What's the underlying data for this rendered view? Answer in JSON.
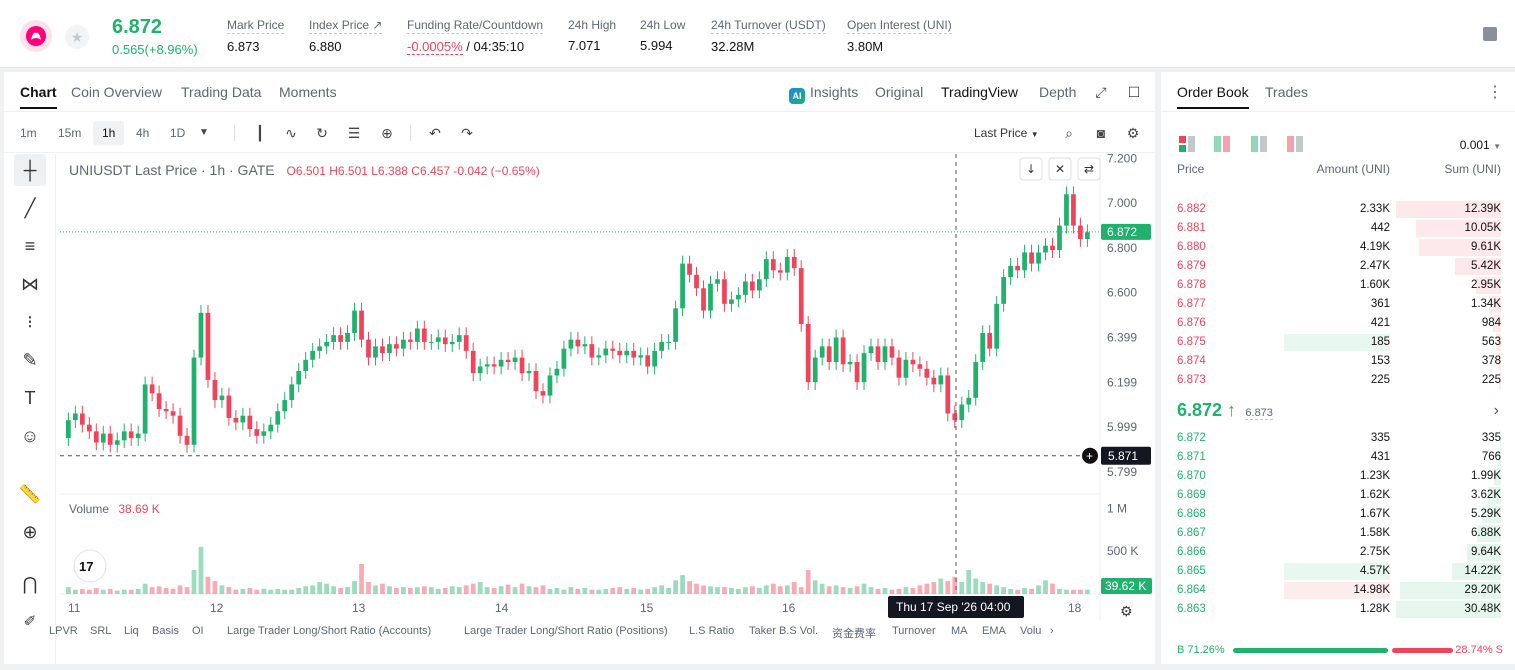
{
  "header": {
    "price": "6.872",
    "change": "0.565(+8.96%)",
    "stats": [
      {
        "label": "Mark Price",
        "value": "6.873"
      },
      {
        "label": "Index Price ↗",
        "value": "6.880"
      },
      {
        "label": "Funding Rate/Countdown",
        "value_neg": "-0.0005%",
        "value": " / 04:35:10"
      },
      {
        "label": "24h High",
        "value": "7.071"
      },
      {
        "label": "24h Low",
        "value": "5.994"
      },
      {
        "label": "24h Turnover (USDT)",
        "value": "32.28M"
      },
      {
        "label": "Open Interest (UNI)",
        "value": "3.80M"
      }
    ]
  },
  "chart_tabs": [
    "Chart",
    "Coin Overview",
    "Trading Data",
    "Moments"
  ],
  "views": [
    "Insights",
    "Original",
    "TradingView",
    "Depth"
  ],
  "ai_badge": "AI",
  "timeframes": [
    "1m",
    "15m",
    "1h",
    "4h",
    "1D"
  ],
  "price_type": "Last Price",
  "legend": {
    "symbol": "UNIUSDT Last Price · 1h · GATE",
    "ohlc": "O6.501  H6.501  L6.388  C6.457  -0.042 (−0.65%)"
  },
  "volume_legend": {
    "label": "Volume",
    "value": "38.69 K"
  },
  "crosshair": {
    "price": "5.871",
    "time": "Thu 17 Sep '26   04:00"
  },
  "last_price_tag": "6.872",
  "volume_tag": "39.62 K",
  "indicators": [
    "LPVR",
    "SRL",
    "Liq",
    "Basis",
    "OI",
    "Large Trader Long/Short Ratio (Accounts)",
    "Large Trader Long/Short Ratio (Positions)",
    "L.S Ratio",
    "Taker B.S Vol.",
    "资金费率",
    "Turnover",
    "MA",
    "EMA",
    "Volu"
  ],
  "chart_data": {
    "type": "candlestick",
    "y_ticks": [
      "7.200",
      "7.000",
      "6.800",
      "6.600",
      "6.399",
      "6.199",
      "5.999",
      "5.799"
    ],
    "vol_ticks": [
      "1 M",
      "500 K"
    ],
    "x_ticks": [
      "11",
      "12",
      "13",
      "14",
      "15",
      "16",
      "18"
    ],
    "ylim": [
      5.7,
      7.22
    ],
    "candles": [
      [
        5.95,
        6.03
      ],
      [
        6.03,
        6.06
      ],
      [
        6.06,
        6.01
      ],
      [
        6.01,
        5.98
      ],
      [
        5.98,
        5.93
      ],
      [
        5.93,
        5.97
      ],
      [
        5.97,
        5.92
      ],
      [
        5.92,
        5.94
      ],
      [
        5.94,
        5.98
      ],
      [
        5.98,
        5.95
      ],
      [
        5.95,
        5.97
      ],
      [
        5.97,
        6.19
      ],
      [
        6.19,
        6.15
      ],
      [
        6.15,
        6.08
      ],
      [
        6.08,
        6.07
      ],
      [
        6.07,
        6.05
      ],
      [
        6.05,
        5.96
      ],
      [
        5.96,
        5.92
      ],
      [
        5.92,
        6.31
      ],
      [
        6.31,
        6.51
      ],
      [
        6.51,
        6.21
      ],
      [
        6.21,
        6.12
      ],
      [
        6.12,
        6.14
      ],
      [
        6.14,
        6.04
      ],
      [
        6.04,
        6.02
      ],
      [
        6.02,
        6.05
      ],
      [
        6.05,
        5.99
      ],
      [
        5.99,
        5.96
      ],
      [
        5.96,
        5.98
      ],
      [
        5.98,
        6.01
      ],
      [
        6.01,
        6.07
      ],
      [
        6.07,
        6.12
      ],
      [
        6.12,
        6.19
      ],
      [
        6.19,
        6.25
      ],
      [
        6.25,
        6.3
      ],
      [
        6.3,
        6.34
      ],
      [
        6.34,
        6.36
      ],
      [
        6.36,
        6.38
      ],
      [
        6.38,
        6.41
      ],
      [
        6.41,
        6.38
      ],
      [
        6.38,
        6.42
      ],
      [
        6.42,
        6.52
      ],
      [
        6.52,
        6.39
      ],
      [
        6.39,
        6.31
      ],
      [
        6.31,
        6.36
      ],
      [
        6.36,
        6.33
      ],
      [
        6.33,
        6.37
      ],
      [
        6.37,
        6.35
      ],
      [
        6.35,
        6.39
      ],
      [
        6.39,
        6.38
      ],
      [
        6.38,
        6.44
      ],
      [
        6.44,
        6.38
      ],
      [
        6.38,
        6.38
      ],
      [
        6.38,
        6.4
      ],
      [
        6.4,
        6.37
      ],
      [
        6.37,
        6.38
      ],
      [
        6.38,
        6.41
      ],
      [
        6.41,
        6.34
      ],
      [
        6.34,
        6.24
      ],
      [
        6.24,
        6.27
      ],
      [
        6.27,
        6.28
      ],
      [
        6.28,
        6.27
      ],
      [
        6.27,
        6.3
      ],
      [
        6.3,
        6.29
      ],
      [
        6.29,
        6.31
      ],
      [
        6.31,
        6.24
      ],
      [
        6.24,
        6.25
      ],
      [
        6.25,
        6.16
      ],
      [
        6.16,
        6.14
      ],
      [
        6.14,
        6.23
      ],
      [
        6.23,
        6.26
      ],
      [
        6.26,
        6.35
      ],
      [
        6.35,
        6.39
      ],
      [
        6.39,
        6.36
      ],
      [
        6.36,
        6.37
      ],
      [
        6.37,
        6.31
      ],
      [
        6.31,
        6.32
      ],
      [
        6.32,
        6.35
      ],
      [
        6.35,
        6.34
      ],
      [
        6.34,
        6.32
      ],
      [
        6.32,
        6.34
      ],
      [
        6.34,
        6.31
      ],
      [
        6.31,
        6.32
      ],
      [
        6.32,
        6.27
      ],
      [
        6.27,
        6.34
      ],
      [
        6.34,
        6.38
      ],
      [
        6.38,
        6.38
      ],
      [
        6.38,
        6.53
      ],
      [
        6.53,
        6.73
      ],
      [
        6.73,
        6.68
      ],
      [
        6.68,
        6.62
      ],
      [
        6.62,
        6.52
      ],
      [
        6.52,
        6.64
      ],
      [
        6.64,
        6.66
      ],
      [
        6.66,
        6.55
      ],
      [
        6.55,
        6.57
      ],
      [
        6.57,
        6.59
      ],
      [
        6.59,
        6.65
      ],
      [
        6.65,
        6.61
      ],
      [
        6.61,
        6.66
      ],
      [
        6.66,
        6.75
      ],
      [
        6.75,
        6.7
      ],
      [
        6.7,
        6.69
      ],
      [
        6.69,
        6.76
      ],
      [
        6.76,
        6.71
      ],
      [
        6.71,
        6.46
      ],
      [
        6.46,
        6.2
      ],
      [
        6.2,
        6.31
      ],
      [
        6.31,
        6.36
      ],
      [
        6.36,
        6.29
      ],
      [
        6.29,
        6.4
      ],
      [
        6.4,
        6.28
      ],
      [
        6.28,
        6.29
      ],
      [
        6.29,
        6.2
      ],
      [
        6.2,
        6.33
      ],
      [
        6.33,
        6.36
      ],
      [
        6.36,
        6.29
      ],
      [
        6.29,
        6.36
      ],
      [
        6.36,
        6.31
      ],
      [
        6.31,
        6.22
      ],
      [
        6.22,
        6.3
      ],
      [
        6.3,
        6.28
      ],
      [
        6.28,
        6.26
      ],
      [
        6.26,
        6.22
      ],
      [
        6.22,
        6.19
      ],
      [
        6.19,
        6.23
      ],
      [
        6.23,
        6.06
      ],
      [
        6.06,
        6.03
      ],
      [
        6.03,
        6.1
      ],
      [
        6.1,
        6.13
      ],
      [
        6.13,
        6.29
      ],
      [
        6.29,
        6.42
      ],
      [
        6.42,
        6.35
      ],
      [
        6.35,
        6.55
      ],
      [
        6.55,
        6.67
      ],
      [
        6.67,
        6.72
      ],
      [
        6.72,
        6.7
      ],
      [
        6.7,
        6.78
      ],
      [
        6.78,
        6.73
      ],
      [
        6.73,
        6.78
      ],
      [
        6.78,
        6.81
      ],
      [
        6.81,
        6.79
      ],
      [
        6.79,
        6.9
      ],
      [
        6.9,
        7.04
      ],
      [
        7.04,
        6.9
      ],
      [
        6.9,
        6.84
      ],
      [
        6.84,
        6.87
      ]
    ],
    "volumes": [
      0.08,
      0.05,
      0.06,
      0.05,
      0.07,
      0.05,
      0.06,
      0.04,
      0.05,
      0.05,
      0.06,
      0.12,
      0.08,
      0.09,
      0.07,
      0.06,
      0.1,
      0.08,
      0.28,
      0.55,
      0.2,
      0.15,
      0.1,
      0.08,
      0.05,
      0.06,
      0.07,
      0.05,
      0.06,
      0.05,
      0.06,
      0.05,
      0.05,
      0.07,
      0.09,
      0.1,
      0.14,
      0.12,
      0.09,
      0.07,
      0.08,
      0.15,
      0.35,
      0.14,
      0.1,
      0.12,
      0.09,
      0.07,
      0.08,
      0.07,
      0.08,
      0.09,
      0.08,
      0.06,
      0.07,
      0.09,
      0.08,
      0.1,
      0.12,
      0.14,
      0.08,
      0.07,
      0.09,
      0.11,
      0.08,
      0.12,
      0.09,
      0.08,
      0.1,
      0.06,
      0.07,
      0.05,
      0.08,
      0.06,
      0.07,
      0.05,
      0.05,
      0.06,
      0.07,
      0.08,
      0.06,
      0.07,
      0.05,
      0.06,
      0.08,
      0.1,
      0.07,
      0.16,
      0.22,
      0.15,
      0.12,
      0.1,
      0.09,
      0.08,
      0.08,
      0.07,
      0.06,
      0.08,
      0.09,
      0.07,
      0.1,
      0.12,
      0.09,
      0.1,
      0.14,
      0.08,
      0.28,
      0.16,
      0.12,
      0.09,
      0.1,
      0.08,
      0.07,
      0.09,
      0.12,
      0.08,
      0.06,
      0.07,
      0.05,
      0.06,
      0.08,
      0.07,
      0.1,
      0.12,
      0.14,
      0.18,
      0.15,
      0.2,
      0.14,
      0.28,
      0.18,
      0.14,
      0.12,
      0.1,
      0.08,
      0.06,
      0.05,
      0.07,
      0.06,
      0.1,
      0.16,
      0.12,
      0.06,
      0.05
    ]
  },
  "orderbook": {
    "tabs": [
      "Order Book",
      "Trades"
    ],
    "precision": "0.001",
    "headers": [
      "Price",
      "Amount (UNI)",
      "Sum (UNI)"
    ],
    "asks": [
      {
        "p": "6.882",
        "a": "2.33K",
        "s": "12.39K",
        "d": 1.0
      },
      {
        "p": "6.881",
        "a": "442",
        "s": "10.05K",
        "d": 0.81
      },
      {
        "p": "6.880",
        "a": "4.19K",
        "s": "9.61K",
        "d": 0.78
      },
      {
        "p": "6.879",
        "a": "2.47K",
        "s": "5.42K",
        "d": 0.44
      },
      {
        "p": "6.878",
        "a": "1.60K",
        "s": "2.95K",
        "d": 0.24
      },
      {
        "p": "6.877",
        "a": "361",
        "s": "1.34K",
        "d": 0.11
      },
      {
        "p": "6.876",
        "a": "421",
        "s": "984",
        "d": 0.08
      },
      {
        "p": "6.875",
        "a": "185",
        "s": "563",
        "d": 0.05,
        "hl": true
      },
      {
        "p": "6.874",
        "a": "153",
        "s": "378",
        "d": 0.03
      },
      {
        "p": "6.873",
        "a": "225",
        "s": "225",
        "d": 0.02
      }
    ],
    "mid_price": "6.872 ↑",
    "mark_price": "6.873",
    "bids": [
      {
        "p": "6.872",
        "a": "335",
        "s": "335",
        "d": 0.01
      },
      {
        "p": "6.871",
        "a": "431",
        "s": "766",
        "d": 0.03
      },
      {
        "p": "6.870",
        "a": "1.23K",
        "s": "1.99K",
        "d": 0.07
      },
      {
        "p": "6.869",
        "a": "1.62K",
        "s": "3.62K",
        "d": 0.12
      },
      {
        "p": "6.868",
        "a": "1.67K",
        "s": "5.29K",
        "d": 0.18
      },
      {
        "p": "6.867",
        "a": "1.58K",
        "s": "6.88K",
        "d": 0.23
      },
      {
        "p": "6.866",
        "a": "2.75K",
        "s": "9.64K",
        "d": 0.32
      },
      {
        "p": "6.865",
        "a": "4.57K",
        "s": "14.22K",
        "d": 0.47,
        "hl": true
      },
      {
        "p": "6.864",
        "a": "14.98K",
        "s": "29.20K",
        "d": 0.96,
        "hl_red": true
      },
      {
        "p": "6.863",
        "a": "1.28K",
        "s": "30.48K",
        "d": 1.0
      }
    ],
    "buy_ratio": "B 71.26%",
    "sell_ratio": "28.74% S",
    "buy_fraction": 0.7126
  },
  "colors": {
    "up": "#20b26c",
    "down": "#f0445a"
  }
}
